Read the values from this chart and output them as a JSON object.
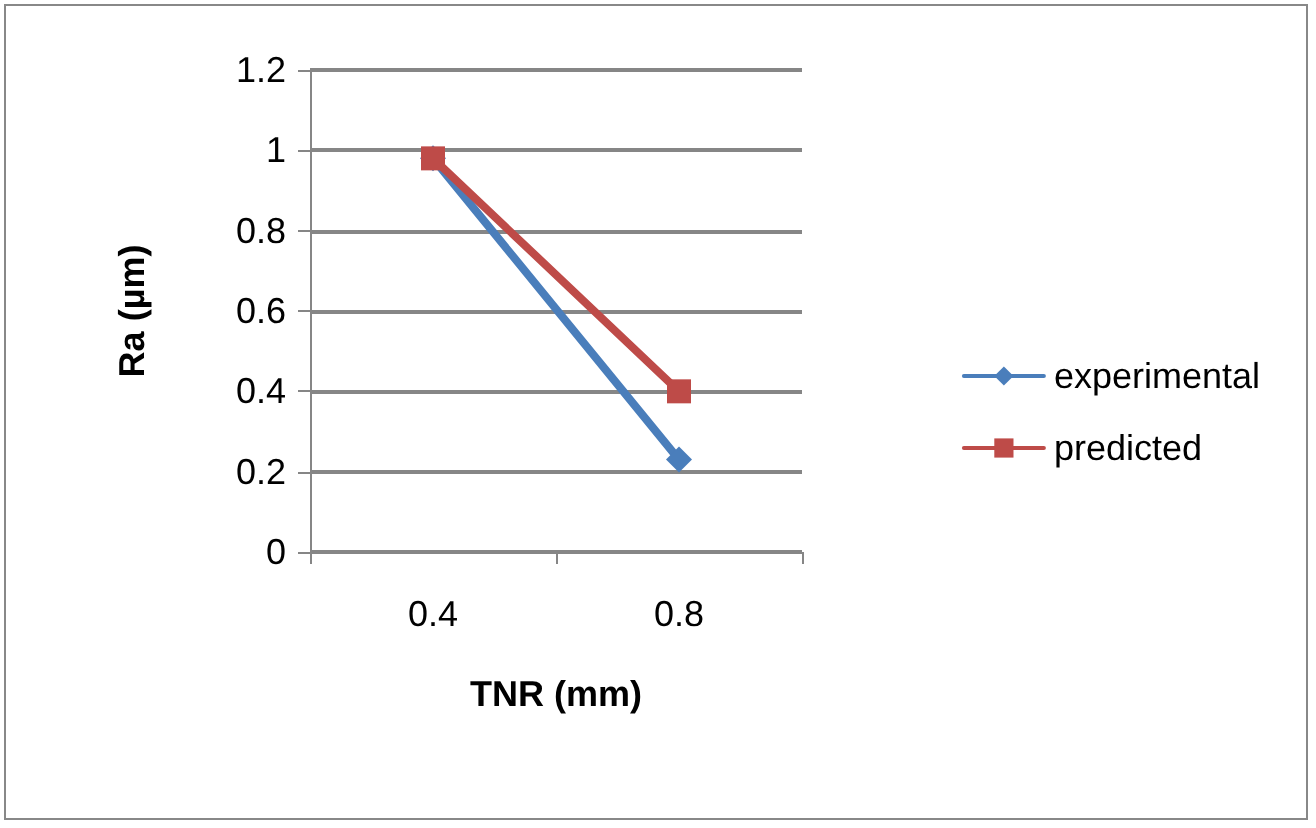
{
  "chart_data": {
    "type": "line",
    "xlabel": "TNR (mm)",
    "ylabel": "Ra (µm)",
    "categories": [
      "0.4",
      "0.8"
    ],
    "series": [
      {
        "name": "experimental",
        "color": "#4a7ebb",
        "marker": "diamond",
        "values": [
          0.98,
          0.23
        ]
      },
      {
        "name": "predicted",
        "color": "#be4b48",
        "marker": "square",
        "values": [
          0.98,
          0.4
        ]
      }
    ],
    "ylim": [
      0,
      1.2
    ],
    "yticks": [
      0,
      0.2,
      0.4,
      0.6,
      0.8,
      1,
      1.2
    ],
    "grid": "y",
    "legend": "right"
  }
}
